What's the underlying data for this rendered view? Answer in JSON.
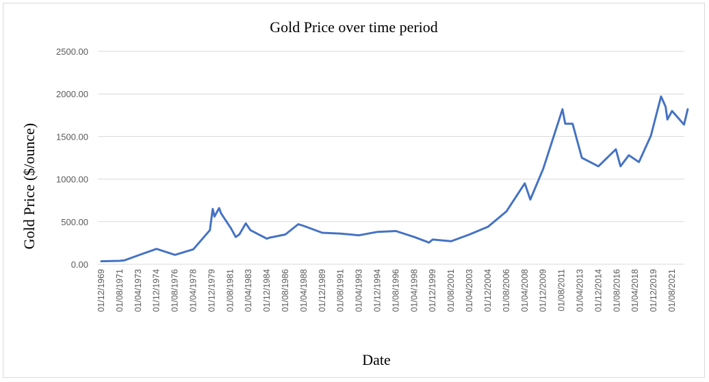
{
  "chart_data": {
    "type": "line",
    "title": "Gold Price over time period",
    "xlabel": "Date",
    "ylabel": "Gold  Price ($/ounce)",
    "ylim": [
      0,
      2500
    ],
    "y_ticks": [
      "0.00",
      "500.00",
      "1000.00",
      "1500.00",
      "2000.00",
      "2500.00"
    ],
    "x_ticks": [
      "01/12/1969",
      "01/08/1971",
      "01/04/1973",
      "01/12/1974",
      "01/08/1976",
      "01/04/1978",
      "01/12/1979",
      "01/08/1981",
      "01/04/1983",
      "01/12/1984",
      "01/08/1986",
      "01/04/1988",
      "01/12/1989",
      "01/08/1991",
      "01/04/1993",
      "01/12/1994",
      "01/08/1996",
      "01/04/1998",
      "01/12/1999",
      "01/08/2001",
      "01/04/2003",
      "01/12/2004",
      "01/08/2006",
      "01/04/2008",
      "01/12/2009",
      "01/08/2011",
      "01/04/2013",
      "01/12/2014",
      "01/08/2016",
      "01/04/2018",
      "01/12/2019",
      "01/08/2021"
    ],
    "grid": true,
    "legend": "none",
    "series_color": "#4472c4",
    "series": [
      {
        "x": [
          "01/12/1969",
          "01/08/1971",
          "01/01/1972",
          "01/08/1973",
          "01/12/1974",
          "01/08/1976",
          "01/04/1978",
          "01/10/1979",
          "01/01/1980",
          "01/03/1980",
          "01/08/1980",
          "01/10/1980",
          "01/09/1981",
          "01/02/1982",
          "01/06/1982",
          "01/01/1983",
          "01/06/1983",
          "01/12/1984",
          "01/02/1985",
          "01/08/1986",
          "01/10/1987",
          "01/04/1988",
          "01/12/1989",
          "01/08/1991",
          "01/04/1993",
          "01/12/1994",
          "01/08/1996",
          "01/04/1998",
          "01/08/1999",
          "01/12/1999",
          "01/08/2001",
          "01/04/2003",
          "01/12/2004",
          "01/08/2006",
          "01/04/2008",
          "01/10/2008",
          "01/12/2009",
          "01/09/2011",
          "01/12/2011",
          "01/08/2012",
          "01/06/2013",
          "01/12/2014",
          "01/07/2016",
          "01/12/2016",
          "01/09/2017",
          "01/08/2018",
          "01/09/2019",
          "01/08/2020",
          "01/01/2021",
          "01/03/2021",
          "01/08/2021",
          "01/09/2022",
          "01/01/2023"
        ],
        "values": [
          35,
          40,
          45,
          120,
          180,
          110,
          175,
          400,
          650,
          560,
          660,
          600,
          420,
          320,
          350,
          480,
          400,
          300,
          310,
          350,
          470,
          450,
          370,
          360,
          340,
          380,
          390,
          320,
          255,
          290,
          270,
          350,
          440,
          620,
          950,
          760,
          1120,
          1820,
          1650,
          1650,
          1250,
          1150,
          1350,
          1150,
          1280,
          1200,
          1510,
          1970,
          1850,
          1700,
          1800,
          1640,
          1820
        ]
      }
    ]
  }
}
